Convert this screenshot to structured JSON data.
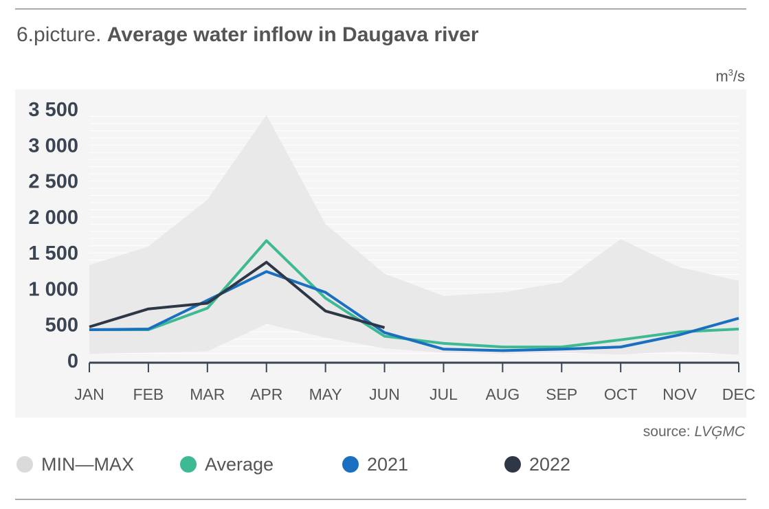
{
  "header": {
    "title_lead": "6.picture.",
    "title_main": "Average water inflow in Daugava river",
    "unit_base": "m",
    "unit_exp": "3",
    "unit_tail": "/s"
  },
  "footer": {
    "source_lead": "source: ",
    "source_org": "LVĢMC"
  },
  "colors": {
    "band": "#e9e9e9",
    "average": "#3dba94",
    "y2021": "#1a6fc0",
    "y2022": "#2e3745",
    "legend_band": "#dadada",
    "axis": "#3a4452",
    "tick_text": "#3a4452",
    "month_text": "#555555"
  },
  "chart_data": {
    "type": "line",
    "title": "Average water inflow in Daugava river",
    "ylabel": "m³/s",
    "categories": [
      "JAN",
      "FEB",
      "MAR",
      "APR",
      "MAY",
      "JUN",
      "JUL",
      "AUG",
      "SEP",
      "OCT",
      "NOV",
      "DEC"
    ],
    "ylim": [
      0,
      3500
    ],
    "yticks": [
      0,
      500,
      1000,
      1500,
      2000,
      2500,
      3000,
      3500
    ],
    "ytick_labels": [
      "0",
      "500",
      "1 000",
      "1 500",
      "2 000",
      "2 500",
      "3 000",
      "3 500"
    ],
    "grid": true,
    "legend": "bottom",
    "band": {
      "name": "MIN—MAX",
      "min": [
        95,
        110,
        130,
        510,
        320,
        170,
        110,
        95,
        110,
        85,
        130,
        80
      ],
      "max": [
        1330,
        1590,
        2240,
        3420,
        1900,
        1210,
        900,
        950,
        1090,
        1690,
        1300,
        1110
      ]
    },
    "series": [
      {
        "name": "Average",
        "values": [
          430,
          430,
          730,
          1670,
          870,
          340,
          240,
          190,
          190,
          290,
          400,
          440
        ]
      },
      {
        "name": "2021",
        "values": [
          430,
          440,
          840,
          1240,
          950,
          390,
          160,
          140,
          160,
          190,
          360,
          590
        ]
      },
      {
        "name": "2022",
        "values": [
          470,
          720,
          800,
          1370,
          690,
          460,
          null,
          null,
          null,
          null,
          null,
          null
        ]
      }
    ]
  }
}
